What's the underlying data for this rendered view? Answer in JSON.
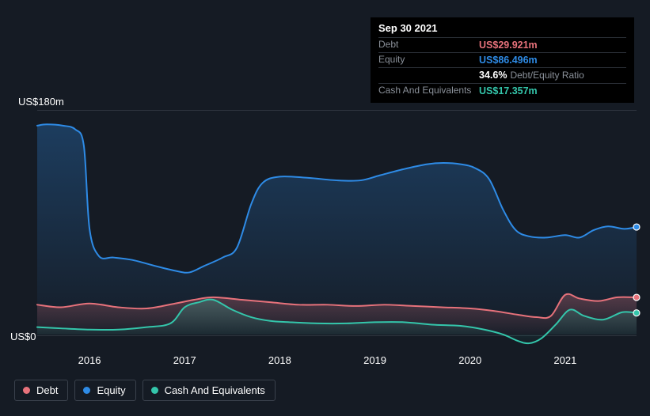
{
  "tooltip": {
    "date": "Sep 30 2021",
    "rows": [
      {
        "label": "Debt",
        "value": "US$29.921m",
        "color": "#e7727b"
      },
      {
        "label": "Equity",
        "value": "US$86.496m",
        "color": "#2e8be6"
      },
      {
        "label": "",
        "value": "34.6%",
        "color": "#ffffff",
        "suffix": "Debt/Equity Ratio"
      },
      {
        "label": "Cash And Equivalents",
        "value": "US$17.357m",
        "color": "#34c6ab"
      }
    ]
  },
  "chart": {
    "type": "area",
    "background_color": "#151b24",
    "grid_color": "#2e353f",
    "text_color": "#ffffff",
    "y_axis": {
      "top_label": "US$180m",
      "bottom_label": "US$0",
      "max": 180,
      "min": -10
    },
    "x_axis": {
      "labels": [
        "2016",
        "2017",
        "2018",
        "2019",
        "2020",
        "2021"
      ],
      "t_min": 2015.45,
      "t_max": 2021.75
    },
    "series": {
      "equity": {
        "color": "#2e8be6",
        "fill_top": "rgba(46,139,230,0.30)",
        "fill_bottom": "rgba(46,139,230,0.02)",
        "line_width": 2,
        "points": [
          [
            2015.45,
            168
          ],
          [
            2015.55,
            169
          ],
          [
            2015.72,
            168
          ],
          [
            2015.85,
            165
          ],
          [
            2015.94,
            152
          ],
          [
            2016.0,
            85
          ],
          [
            2016.1,
            63
          ],
          [
            2016.25,
            62
          ],
          [
            2016.45,
            60
          ],
          [
            2016.7,
            55
          ],
          [
            2016.92,
            51
          ],
          [
            2017.05,
            50
          ],
          [
            2017.2,
            55
          ],
          [
            2017.4,
            62
          ],
          [
            2017.55,
            70
          ],
          [
            2017.7,
            105
          ],
          [
            2017.82,
            122
          ],
          [
            2018.0,
            127
          ],
          [
            2018.3,
            126
          ],
          [
            2018.6,
            124
          ],
          [
            2018.85,
            124
          ],
          [
            2019.05,
            128
          ],
          [
            2019.3,
            133
          ],
          [
            2019.55,
            137
          ],
          [
            2019.72,
            138
          ],
          [
            2019.9,
            137
          ],
          [
            2020.05,
            134
          ],
          [
            2020.2,
            125
          ],
          [
            2020.35,
            100
          ],
          [
            2020.48,
            84
          ],
          [
            2020.62,
            79
          ],
          [
            2020.8,
            78
          ],
          [
            2021.0,
            80
          ],
          [
            2021.15,
            78
          ],
          [
            2021.3,
            84
          ],
          [
            2021.45,
            87
          ],
          [
            2021.62,
            85
          ],
          [
            2021.75,
            86.5
          ]
        ]
      },
      "debt": {
        "color": "#e7727b",
        "fill_top": "rgba(231,114,123,0.30)",
        "fill_bottom": "rgba(231,114,123,0.02)",
        "line_width": 2,
        "points": [
          [
            2015.45,
            24
          ],
          [
            2015.7,
            22
          ],
          [
            2016.0,
            25
          ],
          [
            2016.3,
            22
          ],
          [
            2016.6,
            21
          ],
          [
            2016.9,
            25
          ],
          [
            2017.1,
            28
          ],
          [
            2017.3,
            30
          ],
          [
            2017.6,
            28
          ],
          [
            2017.9,
            26
          ],
          [
            2018.2,
            24
          ],
          [
            2018.5,
            24
          ],
          [
            2018.8,
            23
          ],
          [
            2019.1,
            24
          ],
          [
            2019.4,
            23
          ],
          [
            2019.7,
            22
          ],
          [
            2020.0,
            21
          ],
          [
            2020.25,
            19
          ],
          [
            2020.5,
            16
          ],
          [
            2020.7,
            14
          ],
          [
            2020.85,
            15
          ],
          [
            2021.0,
            32
          ],
          [
            2021.15,
            29
          ],
          [
            2021.35,
            27
          ],
          [
            2021.55,
            30
          ],
          [
            2021.75,
            29.9
          ]
        ]
      },
      "cash": {
        "color": "#34c6ab",
        "fill_top": "rgba(52,198,171,0.25)",
        "fill_bottom": "rgba(52,198,171,0.02)",
        "line_width": 2,
        "points": [
          [
            2015.45,
            6
          ],
          [
            2015.7,
            5
          ],
          [
            2016.0,
            4
          ],
          [
            2016.3,
            4
          ],
          [
            2016.6,
            6
          ],
          [
            2016.85,
            9
          ],
          [
            2017.0,
            22
          ],
          [
            2017.15,
            26
          ],
          [
            2017.3,
            28
          ],
          [
            2017.5,
            20
          ],
          [
            2017.7,
            14
          ],
          [
            2017.9,
            11
          ],
          [
            2018.1,
            10
          ],
          [
            2018.4,
            9
          ],
          [
            2018.7,
            9
          ],
          [
            2019.0,
            10
          ],
          [
            2019.3,
            10
          ],
          [
            2019.6,
            8
          ],
          [
            2019.9,
            7
          ],
          [
            2020.15,
            4
          ],
          [
            2020.35,
            0
          ],
          [
            2020.5,
            -5
          ],
          [
            2020.62,
            -7
          ],
          [
            2020.75,
            -3
          ],
          [
            2020.9,
            8
          ],
          [
            2021.05,
            20
          ],
          [
            2021.2,
            15
          ],
          [
            2021.4,
            12
          ],
          [
            2021.6,
            18
          ],
          [
            2021.75,
            17.4
          ]
        ]
      }
    },
    "legend": [
      {
        "label": "Debt",
        "color": "#e7727b"
      },
      {
        "label": "Equity",
        "color": "#2e8be6"
      },
      {
        "label": "Cash And Equivalents",
        "color": "#34c6ab"
      }
    ]
  }
}
